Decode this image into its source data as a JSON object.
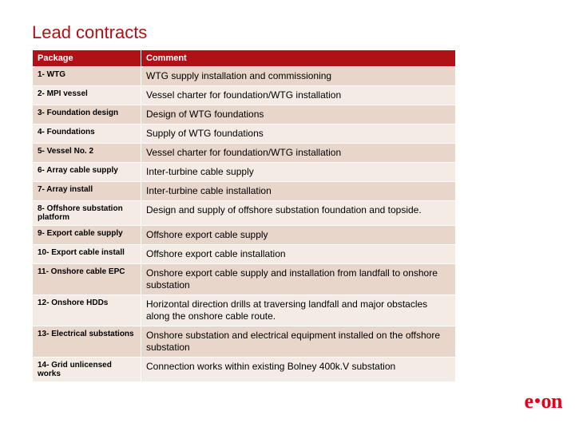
{
  "title": {
    "text": "Lead contracts",
    "color": "#b01116"
  },
  "table": {
    "header_bg": "#b01116",
    "header_fg": "#ffffff",
    "row_bg_odd": "#e8d6ca",
    "row_bg_even": "#f4ebe4",
    "cell_border": "#ffffff",
    "columns": [
      "Package",
      "Comment"
    ],
    "rows": [
      {
        "pkg": "1- WTG",
        "cmt": "WTG supply installation and commissioning"
      },
      {
        "pkg": "2- MPI vessel",
        "cmt": "Vessel charter for foundation/WTG installation"
      },
      {
        "pkg": "3- Foundation design",
        "cmt": "Design of WTG foundations"
      },
      {
        "pkg": "4- Foundations",
        "cmt": "Supply of WTG foundations"
      },
      {
        "pkg": "5- Vessel No. 2",
        "cmt": "Vessel charter for foundation/WTG installation"
      },
      {
        "pkg": "6- Array cable supply",
        "cmt": "Inter-turbine cable supply"
      },
      {
        "pkg": "7- Array install",
        "cmt": "Inter-turbine cable installation"
      },
      {
        "pkg": "8- Offshore substation platform",
        "cmt": "Design and supply of offshore substation foundation and topside."
      },
      {
        "pkg": "9- Export cable supply",
        "cmt": "Offshore export cable supply"
      },
      {
        "pkg": "10- Export cable install",
        "cmt": "Offshore export cable installation"
      },
      {
        "pkg": "11- Onshore cable EPC",
        "cmt": "Onshore export cable supply and installation from landfall to onshore substation"
      },
      {
        "pkg": "12- Onshore HDDs",
        "cmt": "Horizontal direction drills at traversing landfall and major obstacles along the onshore cable route."
      },
      {
        "pkg": "13- Electrical substations",
        "cmt": "Onshore substation and electrical equipment installed on the offshore substation"
      },
      {
        "pkg": "14- Grid unlicensed works",
        "cmt": "Connection works within existing Bolney 400k.V substation"
      }
    ]
  },
  "logo": {
    "prefix": "e",
    "suffix": "on",
    "color": "#e2001a"
  }
}
